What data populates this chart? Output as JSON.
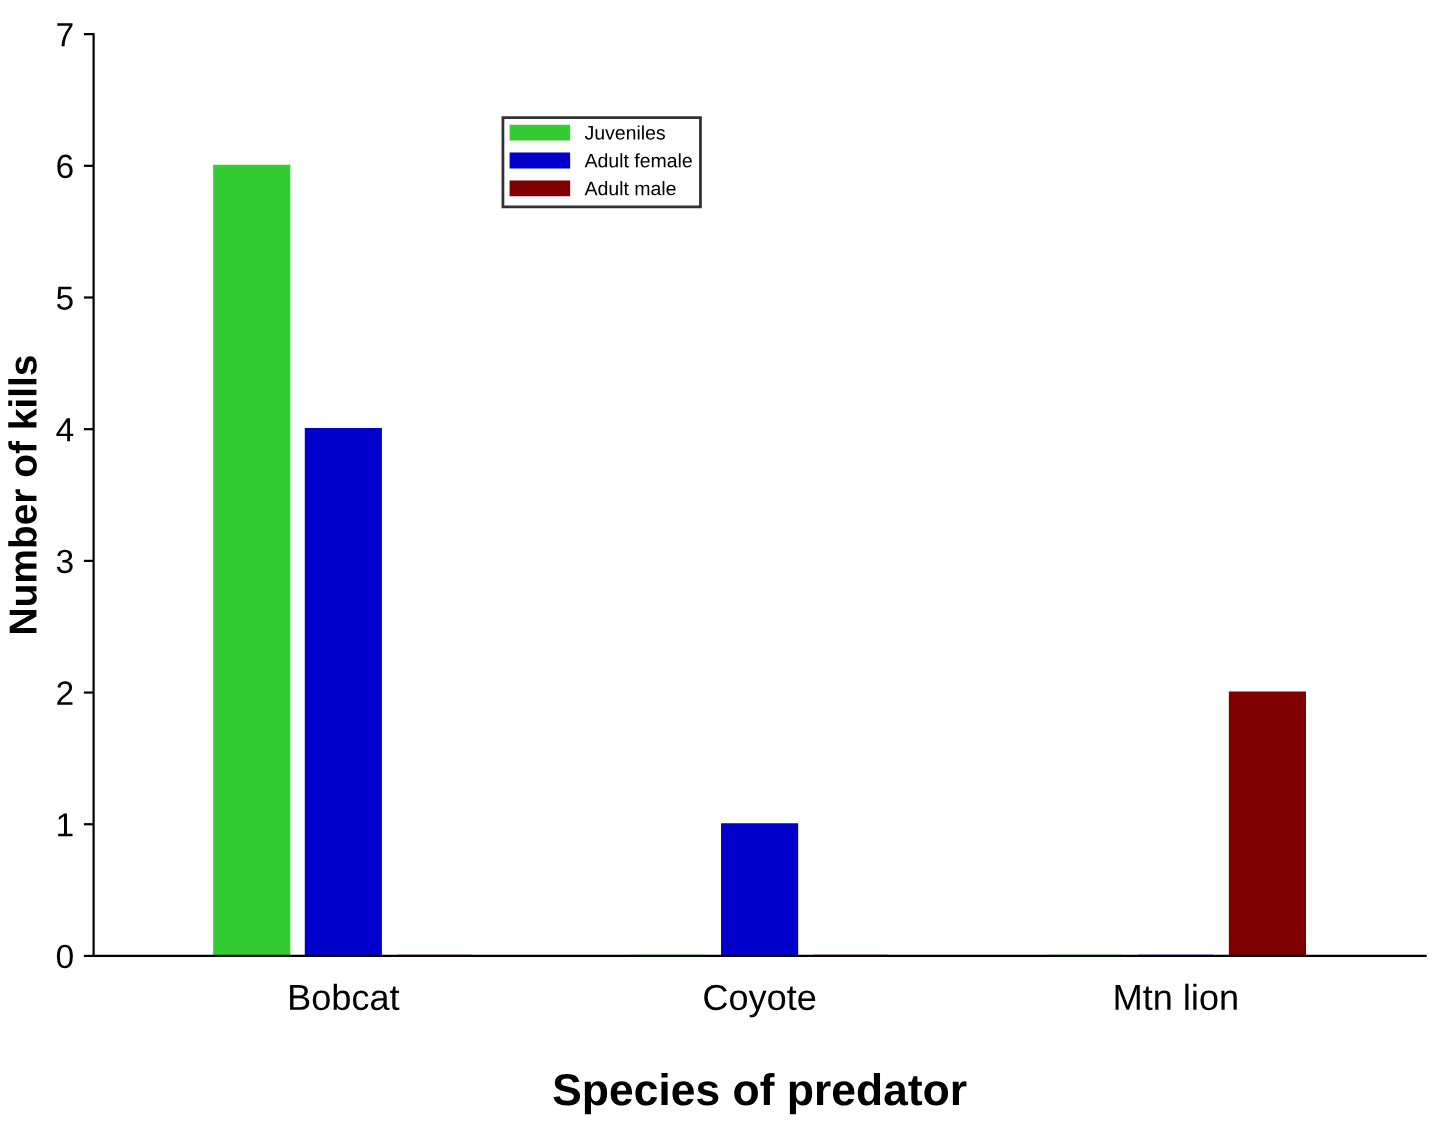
{
  "chart_data": {
    "type": "bar",
    "xlabel": "Species of predator",
    "ylabel": "Number of kills",
    "categories": [
      "Bobcat",
      "Coyote",
      "Mtn lion"
    ],
    "series": [
      {
        "name": "Juveniles",
        "color": "#33cc33",
        "values": [
          6,
          0,
          0
        ]
      },
      {
        "name": "Adult female",
        "color": "#0000cc",
        "values": [
          4,
          1,
          0
        ]
      },
      {
        "name": "Adult male",
        "color": "#800000",
        "values": [
          0,
          0,
          2
        ]
      }
    ],
    "ylim": [
      0,
      7
    ],
    "yticks": [
      0,
      1,
      2,
      3,
      4,
      5,
      6,
      7
    ],
    "grid": false,
    "legend": "top left"
  }
}
